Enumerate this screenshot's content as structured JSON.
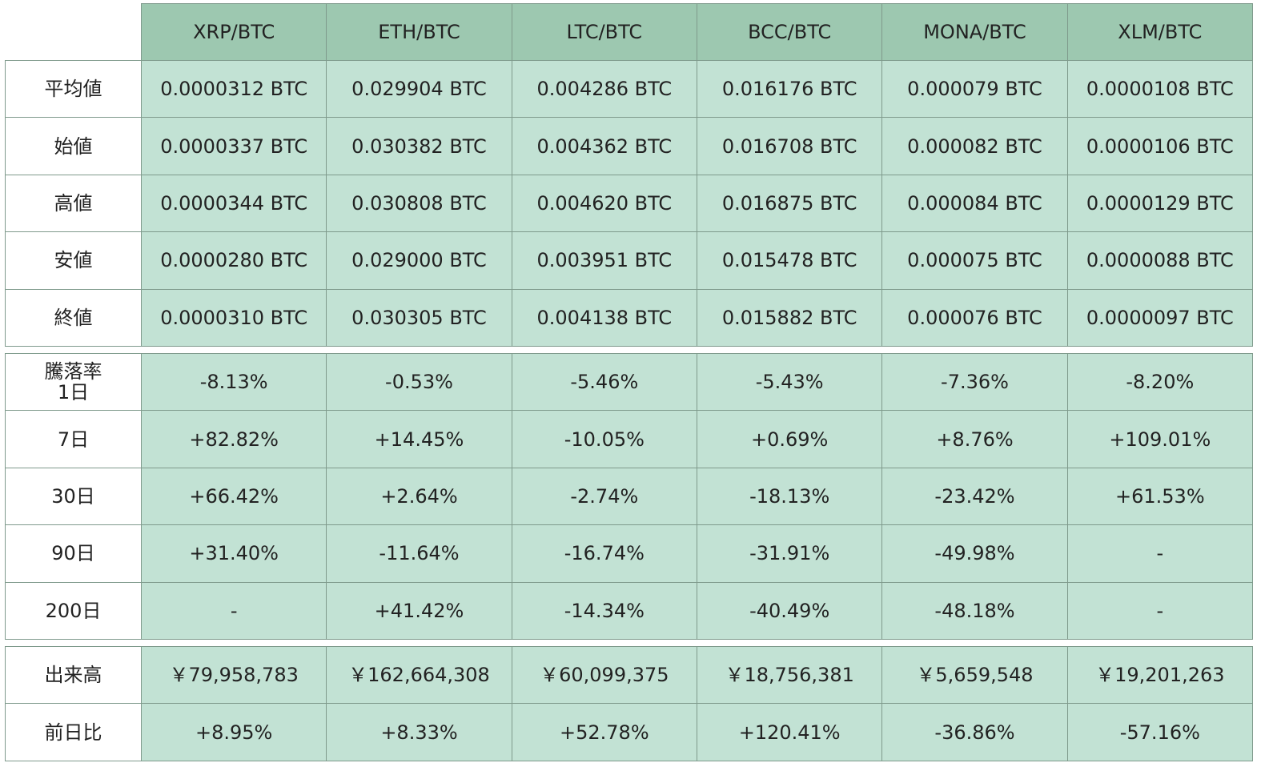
{
  "header": {
    "columns": [
      "XRP/BTC",
      "ETH/BTC",
      "LTC/BTC",
      "BCC/BTC",
      "MONA/BTC",
      "XLM/BTC"
    ]
  },
  "sections": [
    {
      "rows": [
        {
          "label": "平均値",
          "cells": [
            "0.0000312 BTC",
            "0.029904 BTC",
            "0.004286 BTC",
            "0.016176 BTC",
            "0.000079 BTC",
            "0.0000108 BTC"
          ]
        },
        {
          "label": "始値",
          "cells": [
            "0.0000337 BTC",
            "0.030382 BTC",
            "0.004362 BTC",
            "0.016708 BTC",
            "0.000082 BTC",
            "0.0000106 BTC"
          ]
        },
        {
          "label": "高値",
          "cells": [
            "0.0000344 BTC",
            "0.030808 BTC",
            "0.004620 BTC",
            "0.016875 BTC",
            "0.000084 BTC",
            "0.0000129 BTC"
          ]
        },
        {
          "label": "安値",
          "cells": [
            "0.0000280 BTC",
            "0.029000 BTC",
            "0.003951 BTC",
            "0.015478 BTC",
            "0.000075 BTC",
            "0.0000088 BTC"
          ]
        },
        {
          "label": "終値",
          "cells": [
            "0.0000310 BTC",
            "0.030305 BTC",
            "0.004138 BTC",
            "0.015882 BTC",
            "0.000076 BTC",
            "0.0000097 BTC"
          ]
        }
      ]
    },
    {
      "rows": [
        {
          "label": "騰落率\n1日",
          "cells": [
            "-8.13%",
            "-0.53%",
            "-5.46%",
            "-5.43%",
            "-7.36%",
            "-8.20%"
          ]
        },
        {
          "label": "7日",
          "cells": [
            "+82.82%",
            "+14.45%",
            "-10.05%",
            "+0.69%",
            "+8.76%",
            "+109.01%"
          ]
        },
        {
          "label": "30日",
          "cells": [
            "+66.42%",
            "+2.64%",
            "-2.74%",
            "-18.13%",
            "-23.42%",
            "+61.53%"
          ]
        },
        {
          "label": "90日",
          "cells": [
            "+31.40%",
            "-11.64%",
            "-16.74%",
            "-31.91%",
            "-49.98%",
            "-"
          ]
        },
        {
          "label": "200日",
          "cells": [
            "-",
            "+41.42%",
            "-14.34%",
            "-40.49%",
            "-48.18%",
            "-"
          ]
        }
      ]
    },
    {
      "rows": [
        {
          "label": "出来高",
          "cells": [
            "￥79,958,783",
            "￥162,664,308",
            "￥60,099,375",
            "￥18,756,381",
            "￥5,659,548",
            "￥19,201,263"
          ]
        },
        {
          "label": "前日比",
          "cells": [
            "+8.95%",
            "+8.33%",
            "+52.78%",
            "+120.41%",
            "-36.86%",
            "-57.16%"
          ]
        }
      ]
    }
  ]
}
